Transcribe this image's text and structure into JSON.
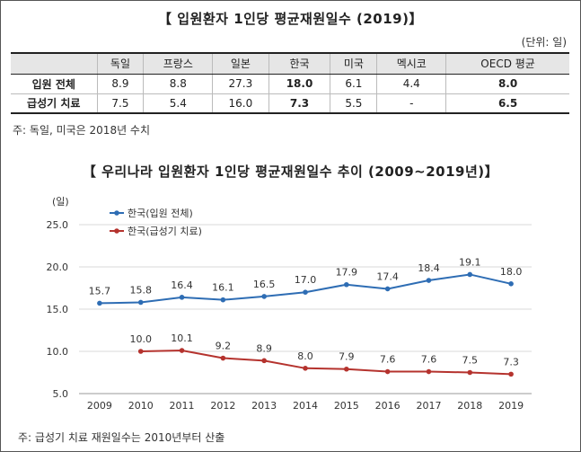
{
  "title1": "【 입원환자 1인당 평균재원일수 (2019)】",
  "unit": "(단위: 일)",
  "table": {
    "headers": [
      "",
      "독일",
      "프랑스",
      "일본",
      "한국",
      "미국",
      "멕시코",
      "OECD 평균"
    ],
    "rows": [
      {
        "label": "입원 전체",
        "values": [
          "8.9",
          "8.8",
          "27.3",
          "18.0",
          "6.1",
          "4.4",
          "8.0"
        ]
      },
      {
        "label": "급성기 치료",
        "values": [
          "7.5",
          "5.4",
          "16.0",
          "7.3",
          "5.5",
          "-",
          "6.5"
        ]
      }
    ]
  },
  "note1": "주: 독일, 미국은 2018년 수치",
  "title2": "【 우리나라 입원환자 1인당 평균재원일수 추이 (2009~2019년)】",
  "note2": "주: 급성기 치료 재원일수는 2010년부터 산출",
  "chart_data": {
    "type": "line",
    "title": "【 우리나라 입원환자 1인당 평균재원일수 추이 (2009~2019년)】",
    "ylabel": "(일)",
    "xlabel": "",
    "x": [
      "2009",
      "2010",
      "2011",
      "2012",
      "2013",
      "2014",
      "2015",
      "2016",
      "2017",
      "2018",
      "2019"
    ],
    "ylim": [
      5.0,
      25.0
    ],
    "yticks": [
      "5.0",
      "10.0",
      "15.0",
      "20.0",
      "25.0"
    ],
    "grid": true,
    "legend": "top-left",
    "series": [
      {
        "name": "한국(입원 전체)",
        "color": "#2e6db4",
        "values": [
          15.7,
          15.8,
          16.4,
          16.1,
          16.5,
          17.0,
          17.9,
          17.4,
          18.4,
          19.1,
          18.0
        ],
        "labels": [
          "15.7",
          "15.8",
          "16.4",
          "16.1",
          "16.5",
          "17.0",
          "17.9",
          "17.4",
          "18.4",
          "19.1",
          "18.0"
        ]
      },
      {
        "name": "한국(급성기 치료)",
        "color": "#b5332e",
        "values": [
          null,
          10.0,
          10.1,
          9.2,
          8.9,
          8.0,
          7.9,
          7.6,
          7.6,
          7.5,
          7.3
        ],
        "labels": [
          null,
          "10.0",
          "10.1",
          "9.2",
          "8.9",
          "8.0",
          "7.9",
          "7.6",
          "7.6",
          "7.5",
          "7.3"
        ]
      }
    ]
  }
}
